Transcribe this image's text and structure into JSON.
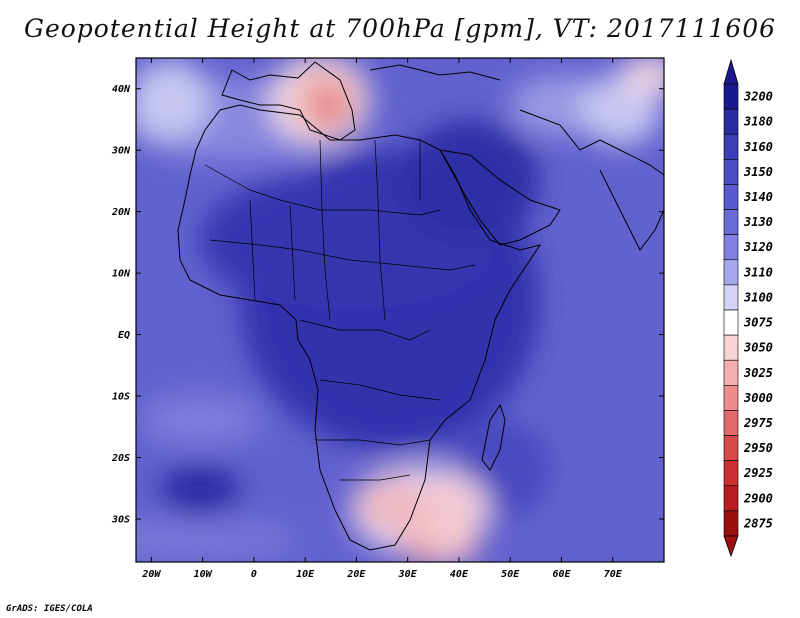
{
  "title": "Geopotential Height at 700hPa [gpm], VT: 2017111606",
  "credit": "GrADS: IGES/COLA",
  "lat_labels": [
    "40N",
    "30N",
    "20N",
    "10N",
    "EQ",
    "10S",
    "20S",
    "30S"
  ],
  "lat_values": [
    40,
    30,
    20,
    10,
    0,
    -10,
    -20,
    -30
  ],
  "lon_labels": [
    "20W",
    "10W",
    "0",
    "10E",
    "20E",
    "30E",
    "40E",
    "50E",
    "60E",
    "70E"
  ],
  "lon_values": [
    -20,
    -10,
    0,
    10,
    20,
    30,
    40,
    50,
    60,
    70
  ],
  "map_extent": {
    "lon": [
      -23,
      80
    ],
    "lat": [
      -37,
      45
    ]
  },
  "colorbar": {
    "levels": [
      "3200",
      "3180",
      "3160",
      "3150",
      "3140",
      "3130",
      "3120",
      "3110",
      "3100",
      "3075",
      "3050",
      "3025",
      "3000",
      "2975",
      "2950",
      "2925",
      "2900",
      "2875"
    ],
    "colors": [
      "#1a1a8c",
      "#2b2ba6",
      "#3d3db8",
      "#4b4bc4",
      "#5a5acc",
      "#6b6bd6",
      "#8080e0",
      "#a8a8ec",
      "#d4d4f6",
      "#ffffff",
      "#fad4d4",
      "#f4b0b0",
      "#ec8c8c",
      "#e26a6a",
      "#d84a4a",
      "#cc3030",
      "#b81c1c",
      "#9c1010"
    ]
  }
}
